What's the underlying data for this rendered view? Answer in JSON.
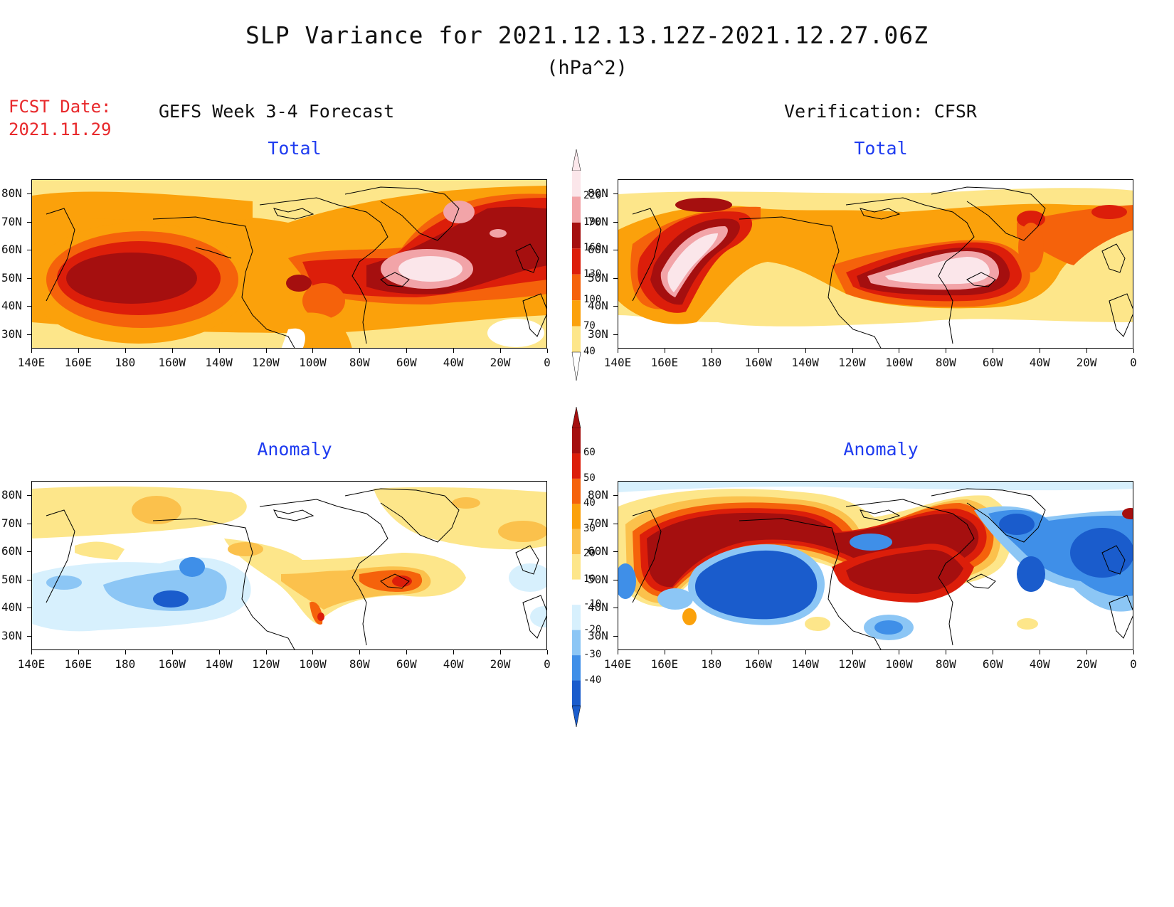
{
  "header": {
    "title": "SLP Variance for 2021.12.13.12Z-2021.12.27.06Z",
    "units": "(hPa^2)",
    "fcst_label": "FCST Date:",
    "fcst_date": "2021.11.29",
    "left_heading": "GEFS Week 3-4 Forecast",
    "right_heading": "Verification: CFSR"
  },
  "panels": {
    "top_left_title": "Total",
    "top_right_title": "Total",
    "bottom_left_title": "Anomaly",
    "bottom_right_title": "Anomaly"
  },
  "axes": {
    "lat_labels": [
      "80N",
      "70N",
      "60N",
      "50N",
      "40N",
      "30N"
    ],
    "lon_labels": [
      "140E",
      "160E",
      "180",
      "160W",
      "140W",
      "120W",
      "100W",
      "80W",
      "60W",
      "40W",
      "20W",
      "0"
    ]
  },
  "colorbars": {
    "total": {
      "levels": [
        "220",
        "190",
        "160",
        "130",
        "100",
        "70",
        "40"
      ],
      "colors": [
        "#fbe6ea",
        "#f2a4a8",
        "#a50f0f",
        "#dc1e0a",
        "#f5620b",
        "#fba10b",
        "#fde68a"
      ]
    },
    "anomaly": {
      "levels": [
        "60",
        "50",
        "40",
        "30",
        "20",
        "10",
        "-10",
        "-20",
        "-30",
        "-40"
      ],
      "colors": [
        "#a50f0f",
        "#dc1e0a",
        "#f5620b",
        "#fba10b",
        "#fbc14c",
        "#fde68a",
        "#ffffff",
        "#d7f0fd",
        "#8cc6f5",
        "#3f8fe8",
        "#1a5ccc"
      ]
    }
  }
}
